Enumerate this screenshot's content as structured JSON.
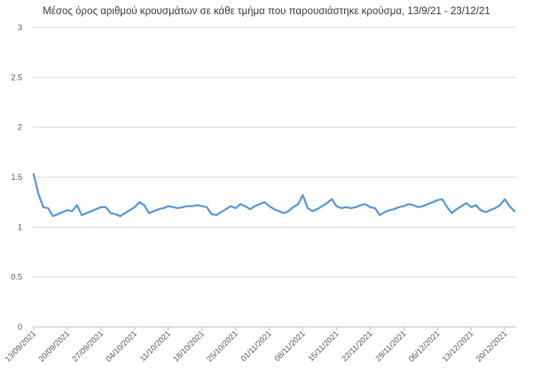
{
  "chart_data": {
    "type": "line",
    "title": "Μέσος όρος αριθμού κρουσμάτων σε κάθε τμήμα που παρουσιάστηκε κρούσμα, 13/9/21 - 23/12/21",
    "xlabel": "",
    "ylabel": "",
    "ylim": [
      0,
      3
    ],
    "y_ticks": [
      "0",
      "0.5",
      "1",
      "1.5",
      "2",
      "2.5",
      "3"
    ],
    "x_tick_labels": [
      "13/09/2021",
      "20/09/2021",
      "27/09/2021",
      "04/10/2021",
      "11/10/2021",
      "18/10/2021",
      "25/10/2021",
      "01/11/2021",
      "08/11/2021",
      "15/11/2021",
      "22/11/2021",
      "29/11/2021",
      "06/12/2021",
      "13/12/2021",
      "20/12/2021"
    ],
    "grid": true,
    "legend": "none",
    "series_color": "#5b9bd5",
    "series": [
      {
        "values": [
          1.53,
          1.33,
          1.2,
          1.19,
          1.11,
          1.13,
          1.15,
          1.17,
          1.16,
          1.22,
          1.12,
          1.14,
          1.16,
          1.18,
          1.2,
          1.2,
          1.14,
          1.13,
          1.11,
          1.14,
          1.17,
          1.2,
          1.25,
          1.22,
          1.14,
          1.16,
          1.18,
          1.19,
          1.21,
          1.2,
          1.19,
          1.2,
          1.21,
          1.21,
          1.22,
          1.21,
          1.2,
          1.13,
          1.12,
          1.15,
          1.18,
          1.21,
          1.19,
          1.23,
          1.21,
          1.18,
          1.21,
          1.23,
          1.25,
          1.21,
          1.18,
          1.16,
          1.14,
          1.16,
          1.2,
          1.23,
          1.32,
          1.19,
          1.16,
          1.18,
          1.21,
          1.24,
          1.28,
          1.21,
          1.19,
          1.2,
          1.19,
          1.2,
          1.22,
          1.23,
          1.2,
          1.19,
          1.12,
          1.15,
          1.17,
          1.18,
          1.2,
          1.21,
          1.23,
          1.22,
          1.2,
          1.21,
          1.23,
          1.25,
          1.27,
          1.28,
          1.2,
          1.14,
          1.18,
          1.21,
          1.24,
          1.2,
          1.22,
          1.17,
          1.15,
          1.17,
          1.19,
          1.22,
          1.28,
          1.21,
          1.16
        ]
      }
    ]
  }
}
